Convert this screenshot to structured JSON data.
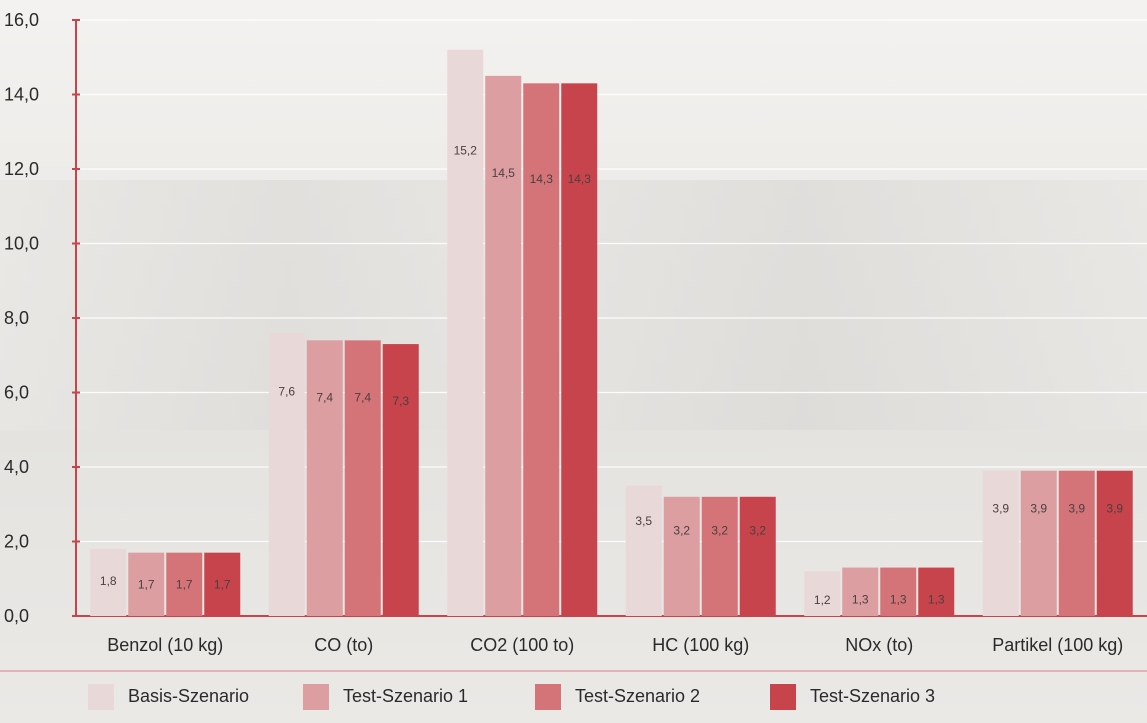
{
  "chart_data": {
    "type": "bar",
    "categories": [
      "Benzol (10 kg)",
      "CO (to)",
      "CO2 (100 to)",
      "HC (100 kg)",
      "NOx (to)",
      "Partikel (100 kg)"
    ],
    "series": [
      {
        "name": "Basis-Szenario",
        "values": [
          1.8,
          7.6,
          15.2,
          3.5,
          1.2,
          3.9
        ],
        "labels": [
          "1,8",
          "7,6",
          "15,2",
          "3,5",
          "1,2",
          "3,9"
        ]
      },
      {
        "name": "Test-Szenario 1",
        "values": [
          1.7,
          7.4,
          14.5,
          3.2,
          1.3,
          3.9
        ],
        "labels": [
          "1,7",
          "7,4",
          "14,5",
          "3,2",
          "1,3",
          "3,9"
        ]
      },
      {
        "name": "Test-Szenario 2",
        "values": [
          1.7,
          7.4,
          14.3,
          3.2,
          1.3,
          3.9
        ],
        "labels": [
          "1,7",
          "7,4",
          "14,3",
          "3,2",
          "1,3",
          "3,9"
        ]
      },
      {
        "name": "Test-Szenario 3",
        "values": [
          1.7,
          7.3,
          14.3,
          3.2,
          1.3,
          3.9
        ],
        "labels": [
          "1,7",
          "7,3",
          "14,3",
          "3,2",
          "1,3",
          "3,9"
        ]
      }
    ],
    "ylim": [
      0,
      16
    ],
    "yticks": [
      0,
      2,
      4,
      6,
      8,
      10,
      12,
      14,
      16
    ],
    "ytick_labels": [
      "0,0",
      "2,0",
      "4,0",
      "6,0",
      "8,0",
      "10,0",
      "12,0",
      "14,0",
      "16,0"
    ],
    "grid": true,
    "legend": "bottom",
    "colors": [
      "#e9d8d8",
      "#dc9ea1",
      "#d47478",
      "#c8444d"
    ],
    "axis_color": "#c8444d"
  },
  "legend": {
    "items": [
      {
        "label": "Basis-Szenario",
        "color": "#e9d8d8"
      },
      {
        "label": "Test-Szenario 1",
        "color": "#dc9ea1"
      },
      {
        "label": "Test-Szenario 2",
        "color": "#d47478"
      },
      {
        "label": "Test-Szenario 3",
        "color": "#c8444d"
      }
    ]
  }
}
